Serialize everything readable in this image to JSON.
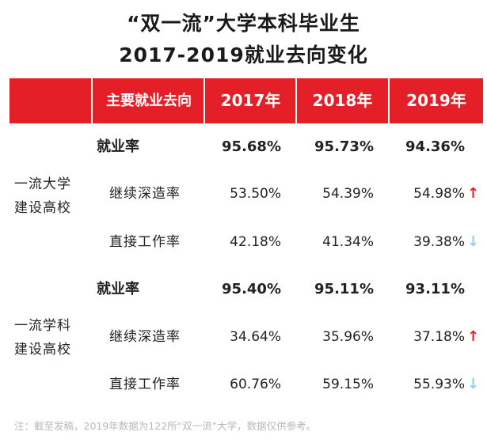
{
  "title": {
    "line1": "“双一流”大学本科毕业生",
    "line2": "2017-2019就业去向变化"
  },
  "colors": {
    "header_bg": "#e51f28",
    "up_arrow": "#e51f28",
    "down_arrow": "#8fd0ee"
  },
  "header": {
    "col0": "主要就业去向",
    "years": [
      "2017年",
      "2018年",
      "2019年"
    ]
  },
  "groups": [
    {
      "name_line1": "一流大学",
      "name_line2": "建设高校",
      "rows": [
        {
          "label": "就业率",
          "values": [
            "95.68%",
            "95.73%",
            "94.36%"
          ],
          "arrow": ""
        },
        {
          "label": "继续深造率",
          "values": [
            "53.50%",
            "54.39%",
            "54.98%"
          ],
          "arrow": "↑"
        },
        {
          "label": "直接工作率",
          "values": [
            "42.18%",
            "41.34%",
            "39.38%"
          ],
          "arrow": "↓"
        }
      ]
    },
    {
      "name_line1": "一流学科",
      "name_line2": "建设高校",
      "rows": [
        {
          "label": "就业率",
          "values": [
            "95.40%",
            "95.11%",
            "93.11%"
          ],
          "arrow": ""
        },
        {
          "label": "继续深造率",
          "values": [
            "34.64%",
            "35.96%",
            "37.18%"
          ],
          "arrow": "↑"
        },
        {
          "label": "直接工作率",
          "values": [
            "60.76%",
            "59.15%",
            "55.93%"
          ],
          "arrow": "↓"
        }
      ]
    }
  ],
  "note": "注：截至发稿，2019年数据为122所“双一流”大学，数据仅供参考。"
}
